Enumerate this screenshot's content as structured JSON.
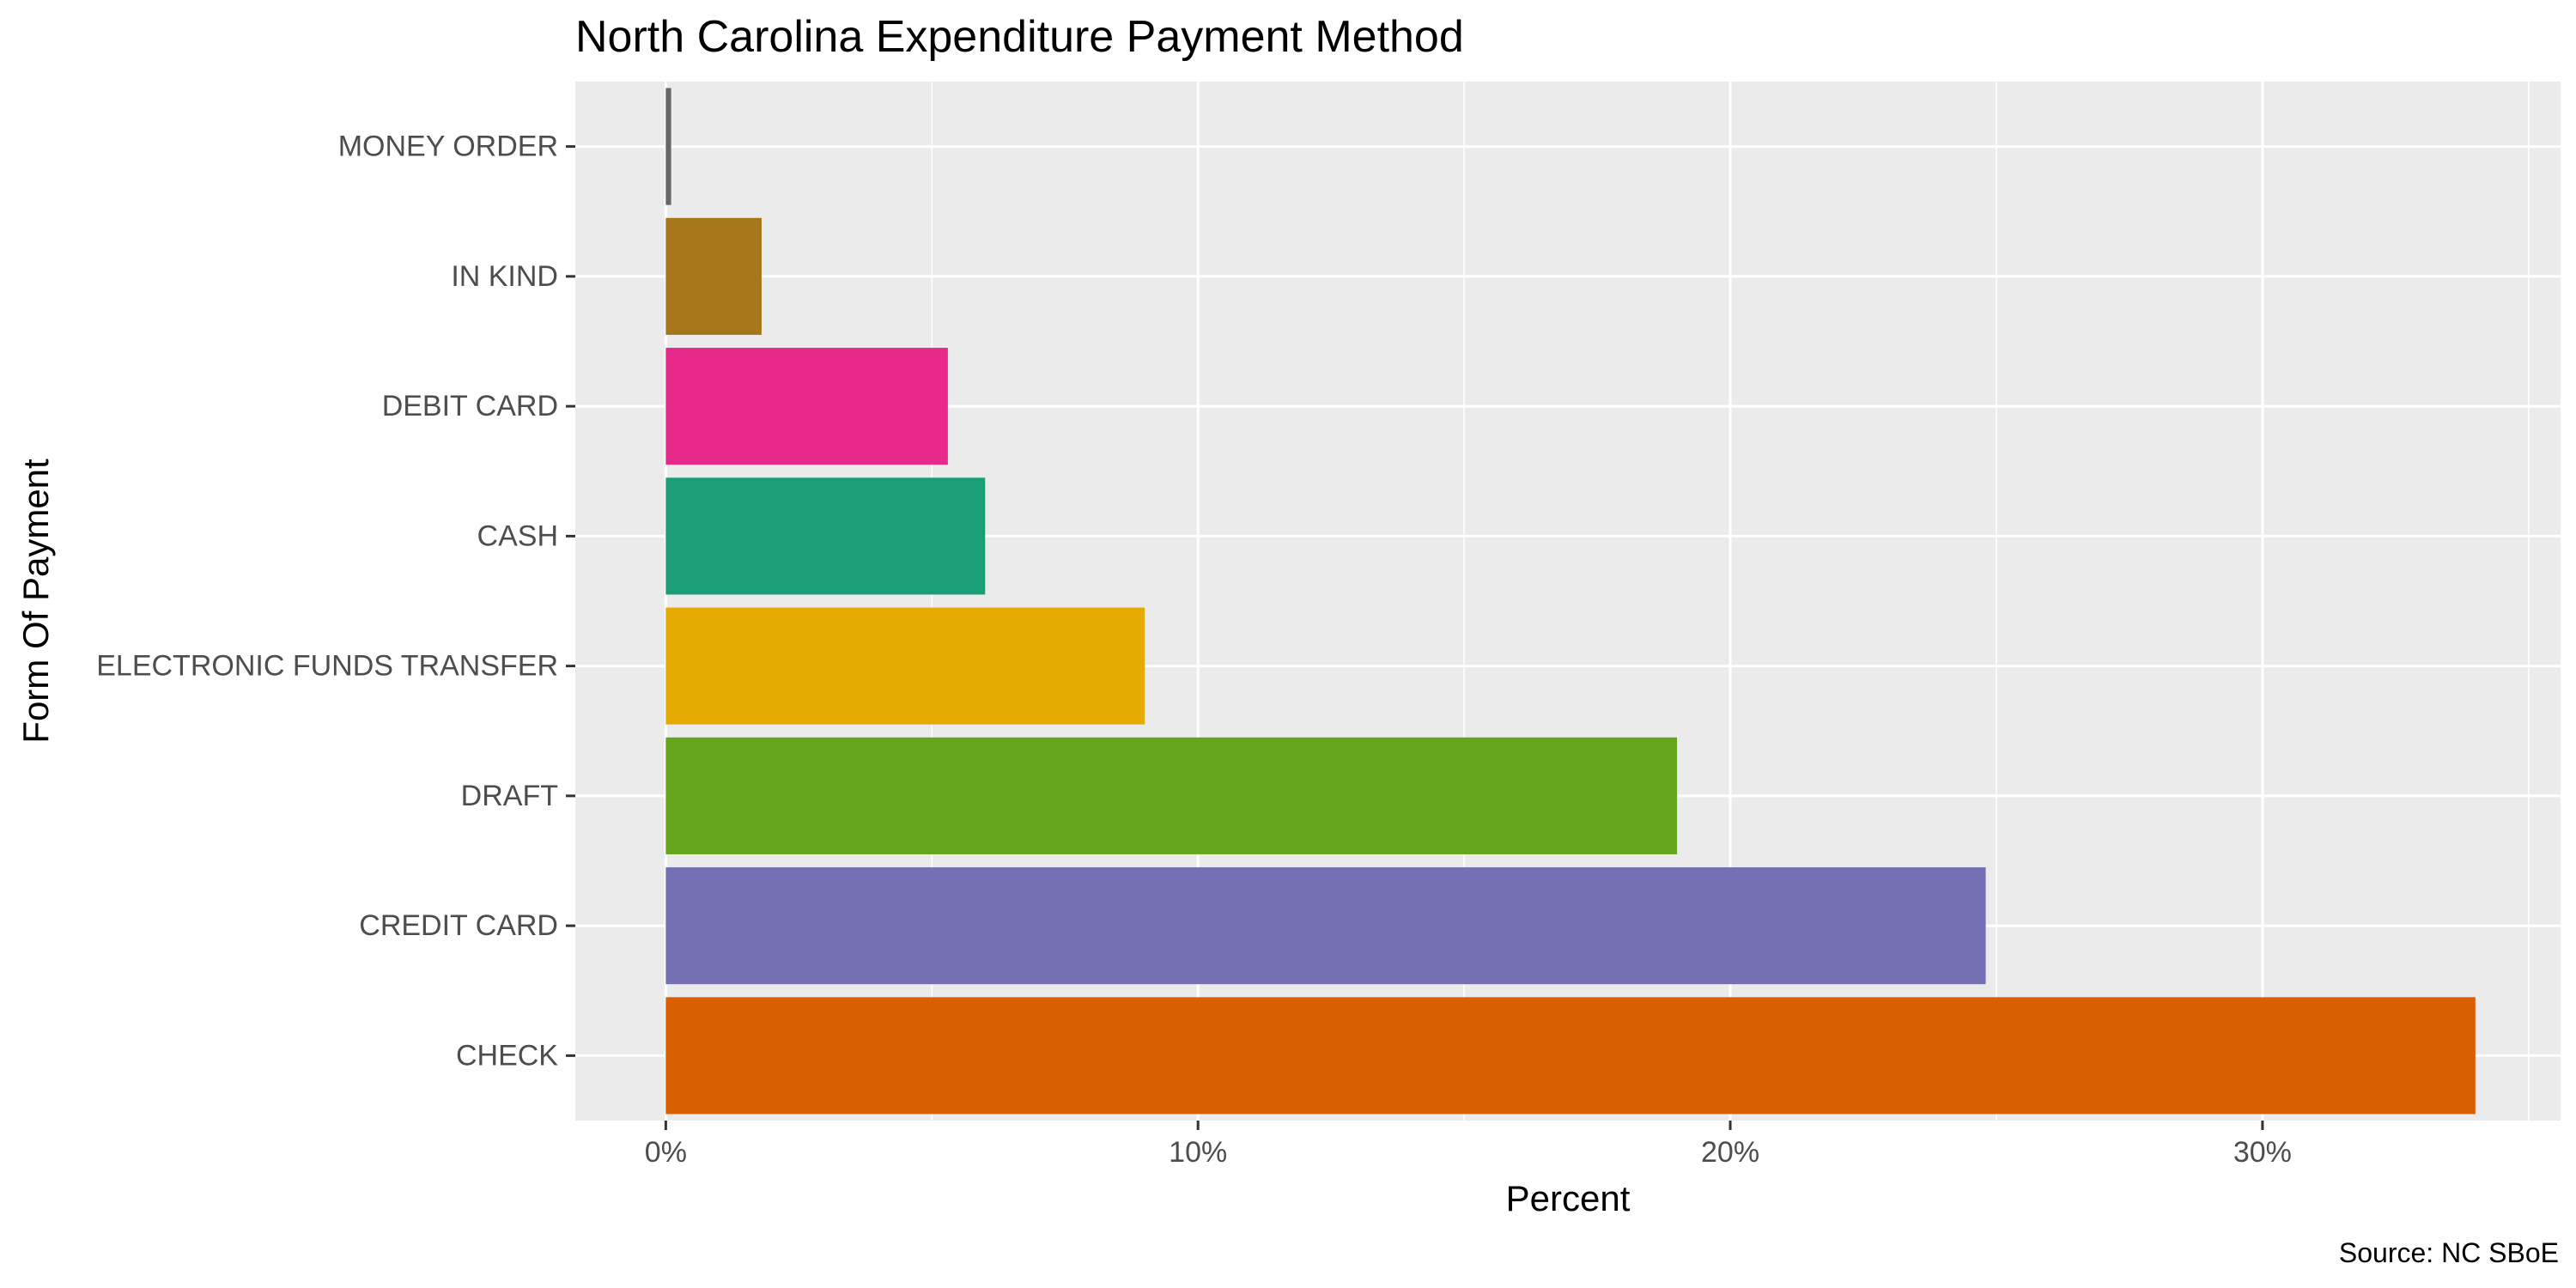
{
  "chart_data": {
    "type": "bar",
    "orientation": "horizontal",
    "title": "North Carolina Expenditure Payment Method",
    "xlabel": "Percent",
    "ylabel": "Form Of Payment",
    "caption": "Source: NC SBoE",
    "xlim": [
      -1.7,
      35.6
    ],
    "x_ticks": [
      0,
      10,
      20,
      30
    ],
    "x_tick_labels": [
      "0%",
      "10%",
      "20%",
      "30%"
    ],
    "categories": [
      "MONEY ORDER",
      "IN KIND",
      "DEBIT CARD",
      "CASH",
      "ELECTRONIC FUNDS TRANSFER",
      "DRAFT",
      "CREDIT CARD",
      "CHECK"
    ],
    "values": [
      0.1,
      1.8,
      5.3,
      6.0,
      9.0,
      19.0,
      24.8,
      34.0
    ],
    "colors": [
      "#666666",
      "#a6761d",
      "#e7298a",
      "#1b9e77",
      "#e6ab02",
      "#66a61e",
      "#7570b3",
      "#d95f02"
    ],
    "grid": true,
    "legend": "none",
    "panel_background": "#ebebeb",
    "grid_color": "#ffffff"
  }
}
